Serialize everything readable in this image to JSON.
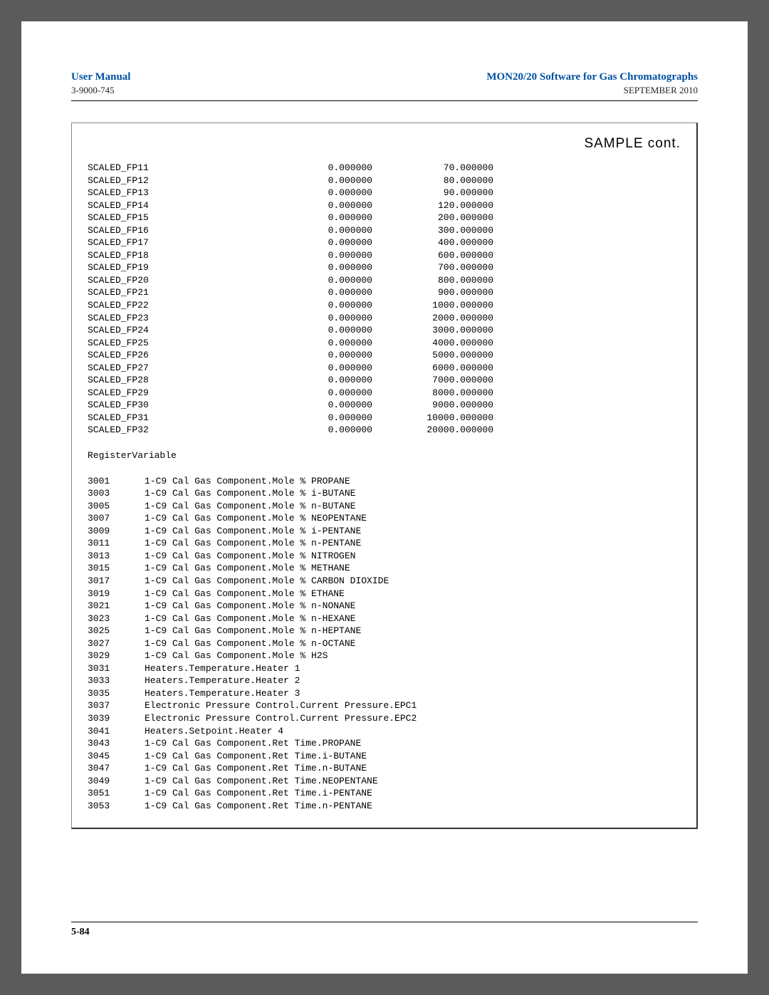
{
  "header": {
    "left_title": "User Manual",
    "right_title": "MON20/20 Software for Gas Chromatographs",
    "left_sub": "3-9000-745",
    "right_sub": "SEPTEMBER 2010"
  },
  "sample_title": "SAMPLE cont.",
  "scaled": [
    {
      "name": "SCALED_FP11",
      "v1": "0.000000",
      "v2": "70.000000"
    },
    {
      "name": "SCALED_FP12",
      "v1": "0.000000",
      "v2": "80.000000"
    },
    {
      "name": "SCALED_FP13",
      "v1": "0.000000",
      "v2": "90.000000"
    },
    {
      "name": "SCALED_FP14",
      "v1": "0.000000",
      "v2": "120.000000"
    },
    {
      "name": "SCALED_FP15",
      "v1": "0.000000",
      "v2": "200.000000"
    },
    {
      "name": "SCALED_FP16",
      "v1": "0.000000",
      "v2": "300.000000"
    },
    {
      "name": "SCALED_FP17",
      "v1": "0.000000",
      "v2": "400.000000"
    },
    {
      "name": "SCALED_FP18",
      "v1": "0.000000",
      "v2": "600.000000"
    },
    {
      "name": "SCALED_FP19",
      "v1": "0.000000",
      "v2": "700.000000"
    },
    {
      "name": "SCALED_FP20",
      "v1": "0.000000",
      "v2": "800.000000"
    },
    {
      "name": "SCALED_FP21",
      "v1": "0.000000",
      "v2": "900.000000"
    },
    {
      "name": "SCALED_FP22",
      "v1": "0.000000",
      "v2": "1000.000000"
    },
    {
      "name": "SCALED_FP23",
      "v1": "0.000000",
      "v2": "2000.000000"
    },
    {
      "name": "SCALED_FP24",
      "v1": "0.000000",
      "v2": "3000.000000"
    },
    {
      "name": "SCALED_FP25",
      "v1": "0.000000",
      "v2": "4000.000000"
    },
    {
      "name": "SCALED_FP26",
      "v1": "0.000000",
      "v2": "5000.000000"
    },
    {
      "name": "SCALED_FP27",
      "v1": "0.000000",
      "v2": "6000.000000"
    },
    {
      "name": "SCALED_FP28",
      "v1": "0.000000",
      "v2": "7000.000000"
    },
    {
      "name": "SCALED_FP29",
      "v1": "0.000000",
      "v2": "8000.000000"
    },
    {
      "name": "SCALED_FP30",
      "v1": "0.000000",
      "v2": "9000.000000"
    },
    {
      "name": "SCALED_FP31",
      "v1": "0.000000",
      "v2": "10000.000000"
    },
    {
      "name": "SCALED_FP32",
      "v1": "0.000000",
      "v2": "20000.000000"
    }
  ],
  "register_heading": {
    "c1": "Register",
    "c2": "Variable"
  },
  "registers": [
    {
      "id": "3001",
      "var": "1-C9 Cal Gas Component.Mole % PROPANE"
    },
    {
      "id": "3003",
      "var": "1-C9 Cal Gas Component.Mole % i-BUTANE"
    },
    {
      "id": "3005",
      "var": "1-C9 Cal Gas Component.Mole % n-BUTANE"
    },
    {
      "id": "3007",
      "var": "1-C9 Cal Gas Component.Mole % NEOPENTANE"
    },
    {
      "id": "3009",
      "var": "1-C9 Cal Gas Component.Mole % i-PENTANE"
    },
    {
      "id": "3011",
      "var": "1-C9 Cal Gas Component.Mole % n-PENTANE"
    },
    {
      "id": "3013",
      "var": "1-C9 Cal Gas Component.Mole % NITROGEN"
    },
    {
      "id": "3015",
      "var": "1-C9 Cal Gas Component.Mole % METHANE"
    },
    {
      "id": "3017",
      "var": "1-C9 Cal Gas Component.Mole % CARBON DIOXIDE"
    },
    {
      "id": "3019",
      "var": "1-C9 Cal Gas Component.Mole % ETHANE"
    },
    {
      "id": "3021",
      "var": "1-C9 Cal Gas Component.Mole % n-NONANE"
    },
    {
      "id": "3023",
      "var": "1-C9 Cal Gas Component.Mole % n-HEXANE"
    },
    {
      "id": "3025",
      "var": "1-C9 Cal Gas Component.Mole % n-HEPTANE"
    },
    {
      "id": "3027",
      "var": "1-C9 Cal Gas Component.Mole % n-OCTANE"
    },
    {
      "id": "3029",
      "var": "1-C9 Cal Gas Component.Mole % H2S"
    },
    {
      "id": "3031",
      "var": "Heaters.Temperature.Heater 1"
    },
    {
      "id": "3033",
      "var": "Heaters.Temperature.Heater 2"
    },
    {
      "id": "3035",
      "var": "Heaters.Temperature.Heater 3"
    },
    {
      "id": "3037",
      "var": "Electronic Pressure Control.Current Pressure.EPC1"
    },
    {
      "id": "3039",
      "var": "Electronic Pressure Control.Current Pressure.EPC2"
    },
    {
      "id": "3041",
      "var": "Heaters.Setpoint.Heater 4"
    },
    {
      "id": "3043",
      "var": "1-C9 Cal Gas Component.Ret Time.PROPANE"
    },
    {
      "id": "3045",
      "var": "1-C9 Cal Gas Component.Ret Time.i-BUTANE"
    },
    {
      "id": "3047",
      "var": "1-C9 Cal Gas Component.Ret Time.n-BUTANE"
    },
    {
      "id": "3049",
      "var": "1-C9 Cal Gas Component.Ret Time.NEOPENTANE"
    },
    {
      "id": "3051",
      "var": "1-C9 Cal Gas Component.Ret Time.i-PENTANE"
    },
    {
      "id": "3053",
      "var": "1-C9 Cal Gas Component.Ret Time.n-PENTANE"
    }
  ],
  "footer": {
    "page": "5-84"
  },
  "colors": {
    "link_blue": "#0050a0",
    "page_bg": "#ffffff",
    "outer_bg": "#5b5b5b",
    "text": "#000000",
    "box_shadow": "#333333",
    "box_light": "#888888"
  },
  "typography": {
    "header_title_size_pt": 11,
    "header_sub_size_pt": 10,
    "mono_size_pt": 10,
    "sample_title_size_pt": 14,
    "footer_size_pt": 11
  }
}
